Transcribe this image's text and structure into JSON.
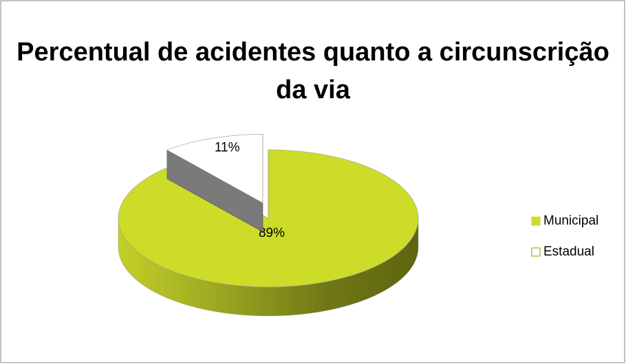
{
  "chart_data": {
    "type": "pie",
    "title": "Percentual de acidentes quanto a circunscrição da via",
    "categories": [
      "Municipal",
      "Estadual"
    ],
    "values": [
      89,
      11
    ],
    "value_labels": [
      "89%",
      "11%"
    ],
    "colors": [
      "#cddc28",
      "#ffffff"
    ],
    "legend": "right"
  }
}
